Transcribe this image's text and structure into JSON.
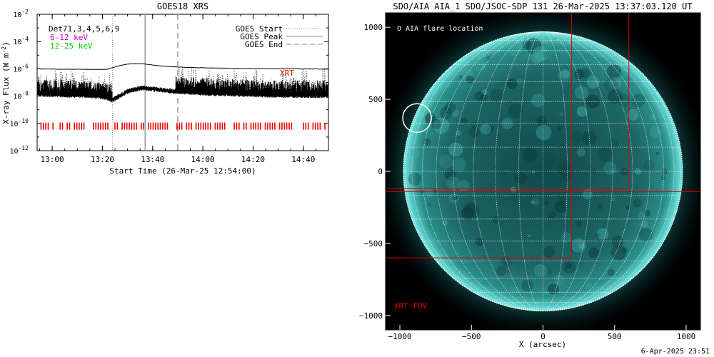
{
  "chart_data": [
    {
      "type": "line",
      "title": "GOES18 XRS",
      "xlabel": "Start Time (26-Mar-25 12:54:00)",
      "ylabel": "X-ray Flux (W m",
      "ylabel_exp": "-2",
      "ylabel_close": ")",
      "yscale": "log",
      "x_unit": "minutes after 12:54:00",
      "xlim": [
        0,
        116
      ],
      "ylim_exponent": [
        -12,
        -2
      ],
      "x_ticks": [
        {
          "t": 6,
          "label": "13:00"
        },
        {
          "t": 26,
          "label": "13:20"
        },
        {
          "t": 46,
          "label": "13:40"
        },
        {
          "t": 66,
          "label": "14:00"
        },
        {
          "t": 86,
          "label": "14:20"
        },
        {
          "t": 106,
          "label": "14:40"
        }
      ],
      "y_ticks": [
        {
          "exp": -2,
          "label": "10",
          "sup": "-2"
        },
        {
          "exp": -4,
          "label": "10",
          "sup": "-4"
        },
        {
          "exp": -6,
          "label": "10",
          "sup": "-6"
        },
        {
          "exp": -8,
          "label": "10",
          "sup": "-8"
        },
        {
          "exp": -10,
          "label": "10",
          "sup": "-10"
        },
        {
          "exp": -12,
          "label": "10",
          "sup": "-12"
        }
      ],
      "text_labels": [
        {
          "text": "D",
          "color": "#000000"
        },
        {
          "text": "Det71,3,4,5,6,9",
          "color": "#000000"
        },
        {
          "text": "6-12 keV",
          "color": "#cc00cc"
        },
        {
          "text": "12-25 keV",
          "color": "#00cc00"
        }
      ],
      "legend": {
        "position": "top-right",
        "entries": [
          {
            "label": "GOES Start",
            "style": "dotted"
          },
          {
            "label": "GOES Peak",
            "style": "solid"
          },
          {
            "label": "GOES End",
            "style": "dashed"
          }
        ]
      },
      "event_lines": {
        "start": 30,
        "peak": 43,
        "end": 56
      },
      "series": [
        {
          "name": "long",
          "x": [
            0,
            10,
            20,
            25,
            28,
            30,
            33,
            36,
            40,
            43,
            46,
            50,
            55,
            60,
            70,
            80,
            90,
            100,
            110,
            116
          ],
          "log_y": [
            -6.0,
            -6.03,
            -6.04,
            -6.05,
            -6.03,
            -5.92,
            -5.75,
            -5.65,
            -5.62,
            -5.65,
            -5.72,
            -5.8,
            -5.86,
            -5.9,
            -5.94,
            -5.97,
            -5.99,
            -6.0,
            -6.01,
            -6.02
          ]
        },
        {
          "name": "short",
          "x": [
            0,
            10,
            20,
            25,
            28,
            30,
            33,
            36,
            40,
            43,
            46,
            50,
            55,
            60,
            70,
            80,
            90,
            100,
            110,
            116
          ],
          "log_y": [
            -7.9,
            -7.95,
            -8.0,
            -8.05,
            -8.2,
            -8.35,
            -8.0,
            -7.7,
            -7.5,
            -7.45,
            -7.52,
            -7.6,
            -7.7,
            -7.75,
            -7.85,
            -7.9,
            -7.95,
            -7.98,
            -8.0,
            -8.0
          ]
        }
      ],
      "xrt_label": "XRT",
      "xrt_marks_log_y": -10.2,
      "colors": {
        "xrt": "#ee0000",
        "data": "#000000",
        "event": "#aaaaaa"
      }
    },
    {
      "type": "image",
      "title": "SDO/AIA AIA_1 SDO/JSOC-SDP 131 26-Mar-2025 13:37:03.120 UT",
      "xlabel": "X (arcsec)",
      "xlim": [
        -1100,
        1100
      ],
      "ylim": [
        -1100,
        1100
      ],
      "x_ticks": [
        -1000,
        -500,
        0,
        500,
        1000
      ],
      "y_ticks": [
        1000,
        500,
        0,
        -500,
        -1000
      ],
      "tick_labels_x": [
        "−1000",
        "−500",
        "0",
        "500",
        "1000"
      ],
      "tick_labels_y": [
        "1000",
        "500",
        "0",
        "−500",
        "−1000"
      ],
      "solar_radius_arcsec": 975,
      "grid_spacing_deg": 10,
      "legend_label": "O AIA flare location",
      "flare_location_arcsec": [
        -880,
        370
      ],
      "flare_circle_radius_arcsec": 100,
      "fov_label": "XRT FOV",
      "fov_boxes_arcsec": [
        {
          "x1": -1100,
          "y1": -120,
          "x2": 600,
          "y2": 1100
        },
        {
          "x1": -1100,
          "y1": -600,
          "x2": 200,
          "y2": 1100
        },
        {
          "x1": -1100,
          "y1": -140,
          "x2": 1100,
          "y2": 1100
        }
      ],
      "colors": {
        "disk": "#1f6e6c",
        "limb": "#5fdcd8",
        "grid": "#ffffff",
        "fov": "#dd0000",
        "background": "#000000"
      }
    }
  ],
  "footer": "6-Apr-2025 23:51"
}
